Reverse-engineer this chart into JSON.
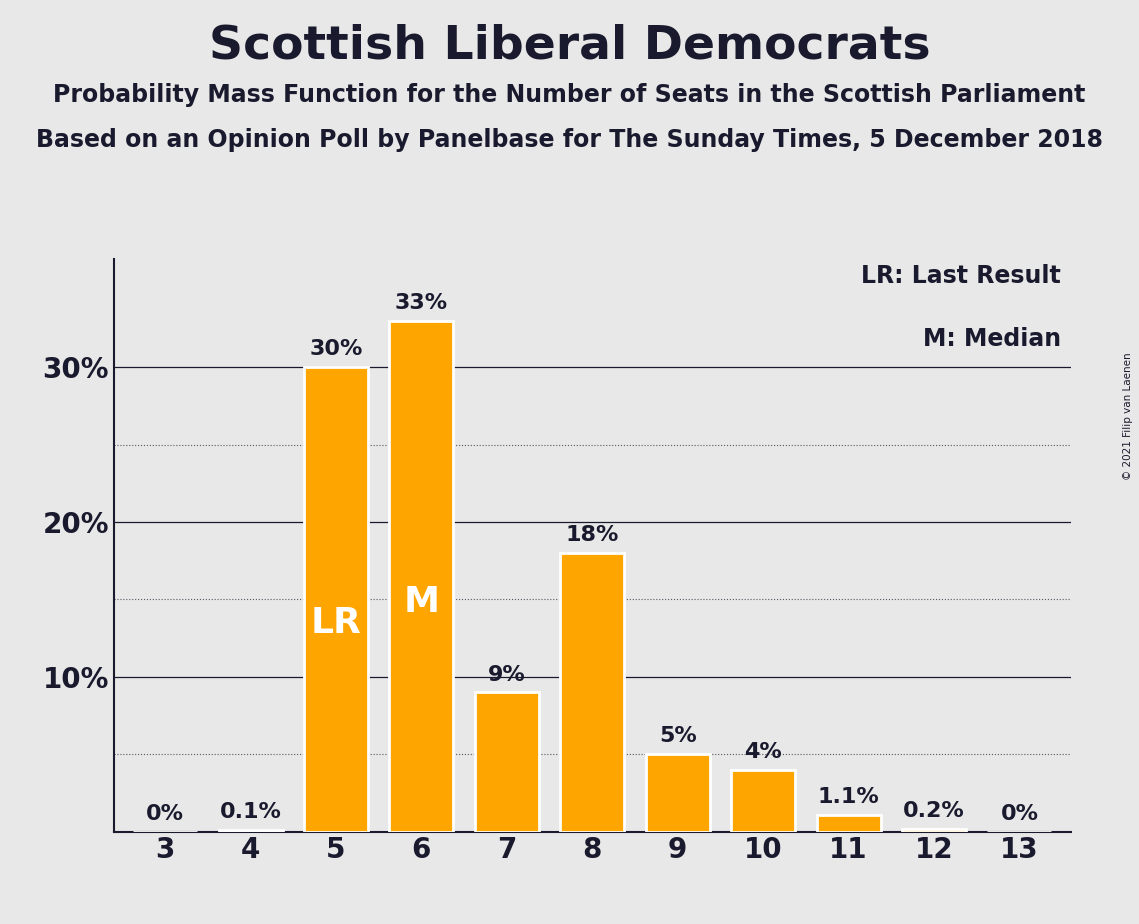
{
  "title": "Scottish Liberal Democrats",
  "subtitle1": "Probability Mass Function for the Number of Seats in the Scottish Parliament",
  "subtitle2": "Based on an Opinion Poll by Panelbase for The Sunday Times, 5 December 2018",
  "copyright": "© 2021 Filip van Laenen",
  "categories": [
    3,
    4,
    5,
    6,
    7,
    8,
    9,
    10,
    11,
    12,
    13
  ],
  "values": [
    0.0,
    0.1,
    30.0,
    33.0,
    9.0,
    18.0,
    5.0,
    4.0,
    1.1,
    0.2,
    0.0
  ],
  "labels": [
    "0%",
    "0.1%",
    "30%",
    "33%",
    "9%",
    "18%",
    "5%",
    "4%",
    "1.1%",
    "0.2%",
    "0%"
  ],
  "bar_color": "#FFA500",
  "background_color": "#E8E8E8",
  "text_color": "#1a1a2e",
  "title_fontsize": 34,
  "subtitle_fontsize": 17,
  "label_fontsize": 16,
  "tick_fontsize": 20,
  "ylim": [
    0,
    37
  ],
  "lr_bar_index": 2,
  "m_bar_index": 3,
  "legend_lr": "LR: Last Result",
  "legend_m": "M: Median",
  "legend_fontsize": 17,
  "bar_width": 0.75,
  "lr_label_fontsize": 26,
  "m_label_fontsize": 26
}
